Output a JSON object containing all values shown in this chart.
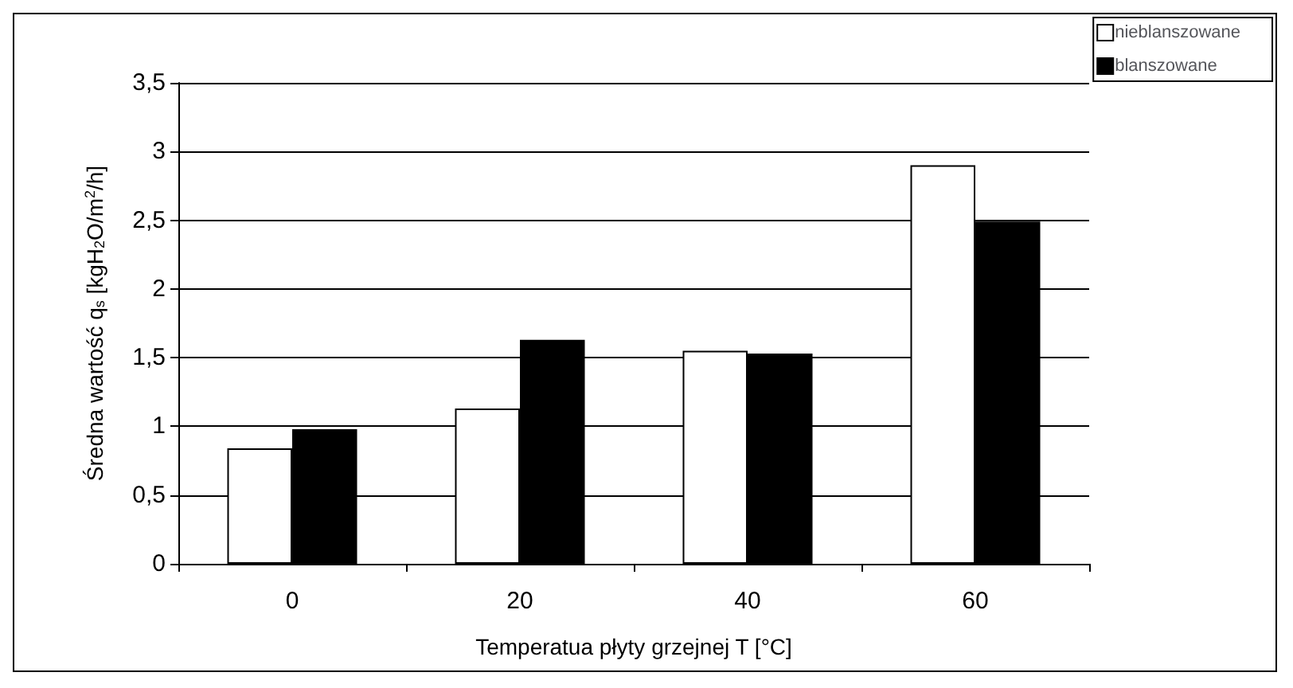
{
  "chart_data": {
    "type": "bar",
    "xlabel": "Temperatua płyty grzejnej T [°C]",
    "ylabel": "Średna wartość q$_{s}$ [kgH$_{2}$O/m$^{2}$/h]",
    "categories": [
      "0",
      "20",
      "40",
      "60"
    ],
    "series": [
      {
        "name": "nieblanszowane",
        "color": "#ffffff",
        "values": [
          0.84,
          1.13,
          1.55,
          2.9
        ]
      },
      {
        "name": "blanszowane",
        "color": "#000000",
        "values": [
          0.98,
          1.63,
          1.53,
          2.49
        ]
      }
    ],
    "ylim": [
      0,
      3.5
    ],
    "yticks": [
      0,
      {
        "value": 0.5,
        "label": "0,5"
      },
      1,
      {
        "value": 1.5,
        "label": "1,5"
      },
      2,
      {
        "value": 2.5,
        "label": "2,5"
      },
      3,
      {
        "value": 3.5,
        "label": "3,5"
      }
    ],
    "grid": "y",
    "legend": "top right"
  }
}
